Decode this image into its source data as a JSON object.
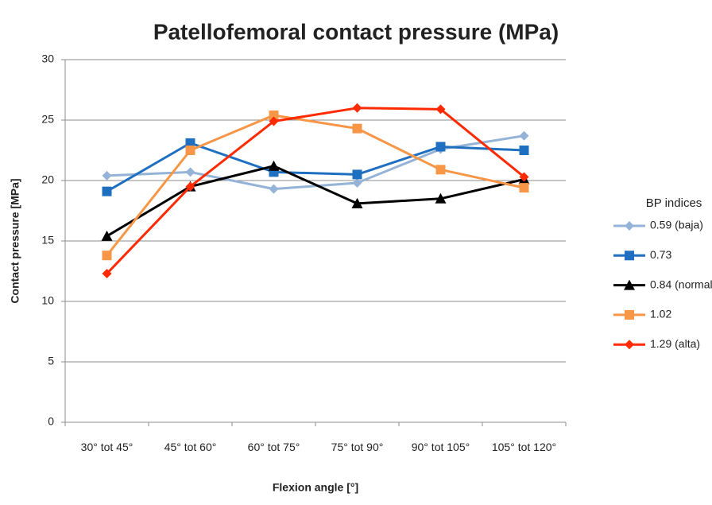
{
  "chart_data": {
    "type": "line",
    "title": "Patellofemoral contact pressure (MPa)",
    "x_label": "Flexion angle [°]",
    "y_label": "Contact pressure [MPa]",
    "legend_title": "BP indices",
    "legend_position": "right",
    "grid": true,
    "categories": [
      "30° tot 45°",
      "45° tot 60°",
      "60° tot 75°",
      "75° tot 90°",
      "90° tot 105°",
      "105° tot 120°"
    ],
    "ylim": [
      0,
      30
    ],
    "yticks": [
      0,
      5,
      10,
      15,
      20,
      25,
      30
    ],
    "series": [
      {
        "name": "0.59 (baja)",
        "color": "#95b3d7",
        "marker": "diamond",
        "values": [
          20.4,
          20.7,
          19.3,
          19.8,
          22.6,
          23.7
        ]
      },
      {
        "name": "0.73",
        "color": "#1f6fc0",
        "marker": "square",
        "values": [
          19.1,
          23.1,
          20.7,
          20.5,
          22.8,
          22.5
        ]
      },
      {
        "name": "0.84 (normal)",
        "color": "#000000",
        "marker": "triangle",
        "values": [
          15.4,
          19.5,
          21.2,
          18.1,
          18.5,
          20.1
        ]
      },
      {
        "name": "1.02",
        "color": "#f79646",
        "marker": "square",
        "values": [
          13.8,
          22.5,
          25.4,
          24.3,
          20.9,
          19.4
        ]
      },
      {
        "name": "1.29 (alta)",
        "color": "#ff2a00",
        "marker": "diamond",
        "values": [
          12.3,
          19.5,
          24.9,
          26.0,
          25.9,
          20.3
        ]
      }
    ]
  }
}
